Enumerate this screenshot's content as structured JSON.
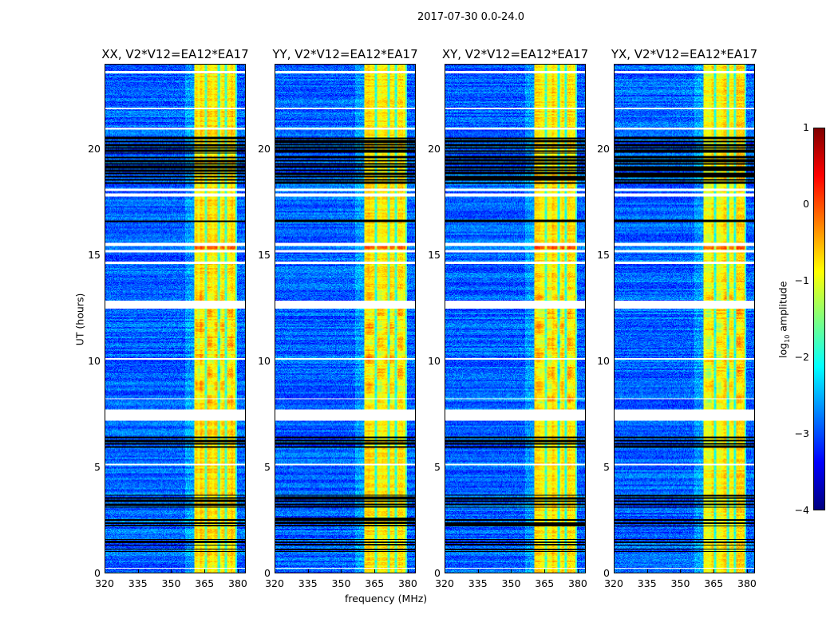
{
  "chart_data": {
    "type": "heatmap",
    "title": "2017-07-30 0.0-24.0",
    "xlabel": "frequency (MHz)",
    "ylabel": "UT (hours)",
    "xlim": [
      320,
      383.6
    ],
    "ylim": [
      0,
      24
    ],
    "xticks": [
      "320",
      "335",
      "350",
      "365",
      "380"
    ],
    "xtick_values": [
      320,
      335,
      350,
      365,
      380
    ],
    "yticks": [
      "0",
      "5",
      "10",
      "15",
      "20"
    ],
    "ytick_values": [
      0,
      5,
      10,
      15,
      20
    ],
    "panels": [
      {
        "title": "XX, V2*V12=EA12*EA17",
        "seed": 11
      },
      {
        "title": "YY, V2*V12=EA12*EA17",
        "seed": 23
      },
      {
        "title": "XY, V2*V12=EA12*EA17",
        "seed": 37
      },
      {
        "title": "YX, V2*V12=EA12*EA17",
        "seed": 41
      }
    ],
    "background_log_amplitude": -2.9,
    "bright_band_mhz": [
      360.3,
      379.7
    ],
    "bright_band_log_amplitude": -0.8,
    "dark_stripes_mhz": [
      365.5,
      371.5,
      374.5,
      379.7
    ],
    "flagged_white_hours": [
      [
        7.2,
        7.7
      ],
      [
        12.5,
        12.85
      ],
      [
        15.45,
        15.6
      ],
      [
        15.15,
        15.25
      ],
      [
        14.6,
        14.7
      ],
      [
        17.8,
        17.95
      ],
      [
        18.05,
        18.15
      ],
      [
        20.95,
        21.05
      ],
      [
        21.9,
        22.0
      ],
      [
        23.6,
        23.7
      ],
      [
        10.1,
        10.15
      ],
      [
        8.2,
        8.25
      ],
      [
        5.1,
        5.15
      ],
      [
        0.2,
        0.25
      ]
    ],
    "flagged_black_hours": [
      [
        18.4,
        19.7
      ],
      [
        19.8,
        20.6
      ],
      [
        5.9,
        6.45
      ],
      [
        3.1,
        3.7
      ],
      [
        2.2,
        2.6
      ],
      [
        1.0,
        1.15
      ],
      [
        1.3,
        1.6
      ],
      [
        16.6,
        16.7
      ]
    ],
    "colorbar": {
      "label": "log",
      "label_sub": "10",
      "label_rest": " amplitude",
      "range": [
        -4,
        1
      ],
      "ticks": [
        "1",
        "0",
        "−1",
        "−2",
        "−3",
        "−4"
      ],
      "tick_values": [
        1,
        0,
        -1,
        -2,
        -3,
        -4
      ],
      "colormap": "jet"
    }
  }
}
